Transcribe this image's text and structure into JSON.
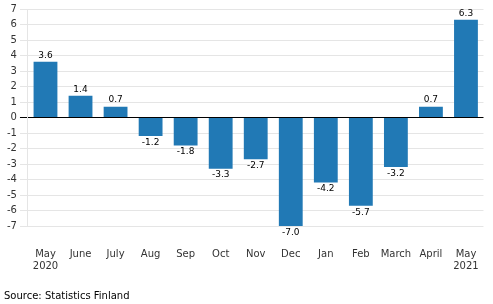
{
  "chart_data": {
    "type": "bar",
    "categories": [
      "May\n2020",
      "June",
      "July",
      "Aug",
      "Sep",
      "Oct",
      "Nov",
      "Dec",
      "Jan",
      "Feb",
      "March",
      "April",
      "May\n2021"
    ],
    "values": [
      3.6,
      1.4,
      0.7,
      -1.2,
      -1.8,
      -3.3,
      -2.7,
      -7.0,
      -4.2,
      -5.7,
      -3.2,
      0.7,
      6.3
    ],
    "value_labels": [
      "3.6",
      "1.4",
      "0.7",
      "-1.2",
      "-1.8",
      "-3.3",
      "-2.7",
      "-7.0",
      "-4.2",
      "-5.7",
      "-3.2",
      "0.7",
      "6.3"
    ],
    "data_labels": true,
    "color": "#2179b5",
    "ylim": [
      -7,
      7
    ],
    "yticks": [
      -7,
      -6,
      -5,
      -4,
      -3,
      -2,
      -1,
      0,
      1,
      2,
      3,
      4,
      5,
      6,
      7
    ],
    "grid": true,
    "source": "Source: Statistics Finland"
  }
}
